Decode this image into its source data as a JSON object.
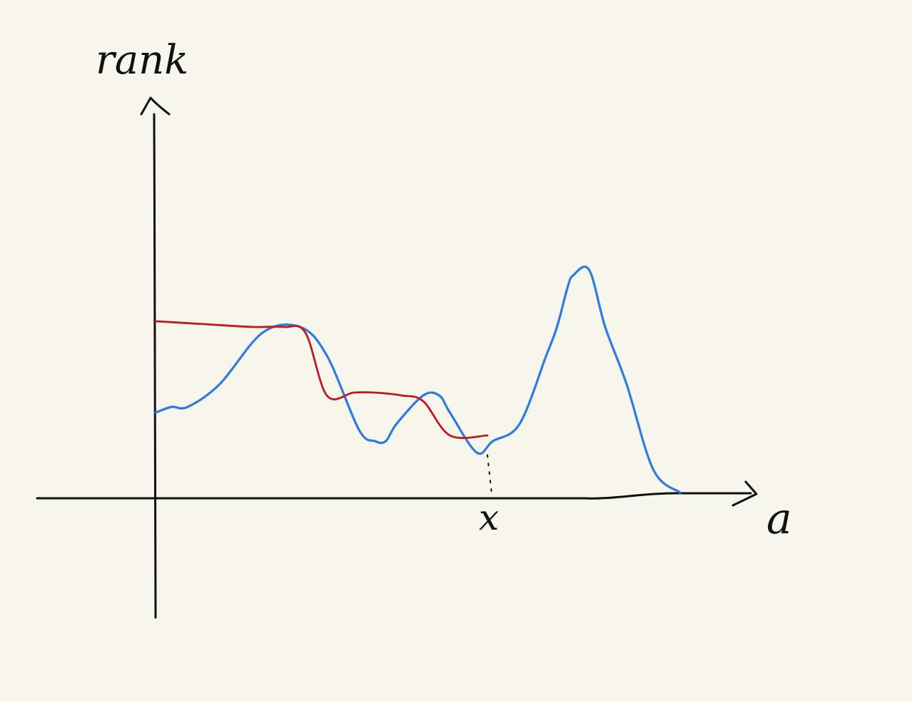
{
  "chart_data": {
    "type": "line",
    "axes": {
      "y_label": "rank",
      "x_label": "a",
      "x_marker_label": "x",
      "x_marker_value": 6.2,
      "xlim": [
        -2.2,
        12.5
      ],
      "ylim": [
        -2.0,
        7.0
      ]
    },
    "series": [
      {
        "color": "#2e7be0",
        "x": [
          0.0,
          0.3,
          0.6,
          1.2,
          2.0,
          2.7,
          3.2,
          3.8,
          4.1,
          4.3,
          4.5,
          5.0,
          5.3,
          5.5,
          6.0,
          6.3,
          6.8,
          7.3,
          7.5,
          7.7,
          7.8,
          8.1,
          8.4,
          8.8,
          9.3,
          9.8
        ],
        "y": [
          1.5,
          1.6,
          1.6,
          2.0,
          2.9,
          3.0,
          2.5,
          1.2,
          1.0,
          1.0,
          1.3,
          1.8,
          1.8,
          1.5,
          0.8,
          1.0,
          1.3,
          2.5,
          3.0,
          3.7,
          3.9,
          4.0,
          3.0,
          2.0,
          0.5,
          0.1
        ]
      },
      {
        "color": "#c0181c",
        "x": [
          0.0,
          0.9,
          1.8,
          2.4,
          2.8,
          3.2,
          3.7,
          4.1,
          4.6,
          5.0,
          5.5,
          6.2
        ],
        "y": [
          3.1,
          3.05,
          3.0,
          3.0,
          2.9,
          1.8,
          1.85,
          1.85,
          1.8,
          1.7,
          1.1,
          1.1
        ]
      }
    ]
  }
}
